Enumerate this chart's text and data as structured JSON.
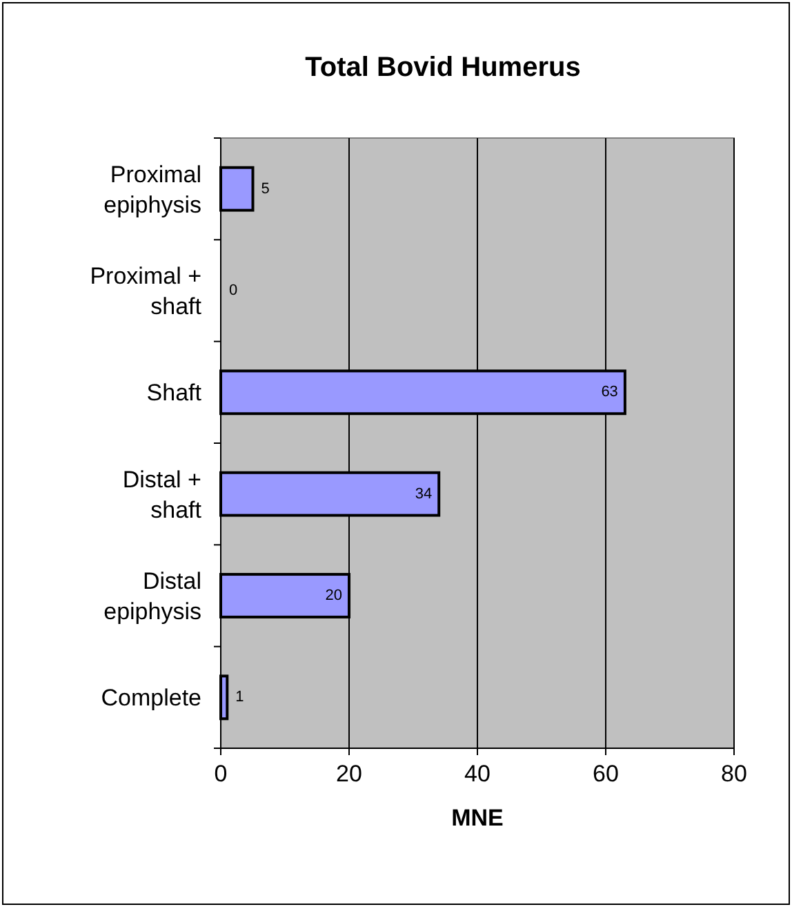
{
  "chart_data": {
    "type": "bar",
    "orientation": "horizontal",
    "title": "Total Bovid Humerus",
    "xlabel": "MNE",
    "categories": [
      "Proximal epiphysis",
      "Proximal + shaft",
      "Shaft",
      "Distal + shaft",
      "Distal epiphysis",
      "Complete"
    ],
    "values": [
      5,
      0,
      63,
      34,
      20,
      1
    ],
    "color": "#9999ff",
    "xlim": [
      0,
      80
    ],
    "xticks": [
      0,
      20,
      40,
      60,
      80
    ],
    "grid": "x",
    "data_labels": true
  }
}
